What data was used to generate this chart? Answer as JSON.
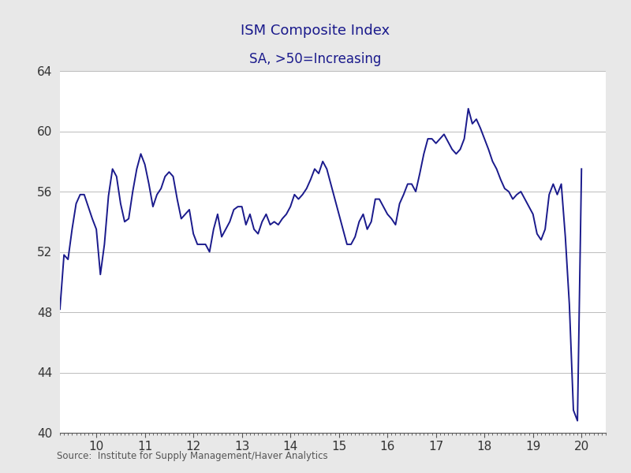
{
  "title": "ISM Composite Index",
  "subtitle": "SA, >50=Increasing",
  "source": "Source:  Institute for Supply Management/Haver Analytics",
  "title_color": "#1A1A8C",
  "subtitle_color": "#1A1A8C",
  "line_color": "#1A1A8C",
  "background_color": "#E8E8E8",
  "plot_bg_color": "#FFFFFF",
  "grid_color": "#BBBBBB",
  "ylim": [
    40,
    64
  ],
  "yticks": [
    40,
    44,
    48,
    52,
    56,
    60,
    64
  ],
  "xlim_start": 2009.25,
  "xlim_end": 2020.5,
  "xtick_labels": [
    "10",
    "11",
    "12",
    "13",
    "14",
    "15",
    "16",
    "17",
    "18",
    "19",
    "20"
  ],
  "xtick_positions": [
    2010,
    2011,
    2012,
    2013,
    2014,
    2015,
    2016,
    2017,
    2018,
    2019,
    2020
  ],
  "values": [
    48.2,
    51.8,
    51.5,
    53.5,
    55.2,
    55.8,
    55.8,
    55.0,
    54.2,
    53.5,
    50.5,
    52.5,
    55.7,
    57.5,
    57.0,
    55.2,
    54.0,
    54.2,
    56.0,
    57.5,
    58.5,
    57.8,
    56.5,
    55.0,
    55.8,
    56.2,
    57.0,
    57.3,
    57.0,
    55.5,
    54.2,
    54.5,
    54.8,
    53.2,
    52.5,
    52.5,
    52.5,
    52.0,
    53.5,
    54.5,
    53.0,
    53.5,
    54.0,
    54.8,
    55.0,
    55.0,
    53.8,
    54.5,
    53.5,
    53.2,
    54.0,
    54.5,
    53.8,
    54.0,
    53.8,
    54.2,
    54.5,
    55.0,
    55.8,
    55.5,
    55.8,
    56.2,
    56.8,
    57.5,
    57.2,
    58.0,
    57.5,
    56.5,
    55.5,
    54.5,
    53.5,
    52.5,
    52.5,
    53.0,
    54.0,
    54.5,
    53.5,
    54.0,
    55.5,
    55.5,
    55.0,
    54.5,
    54.2,
    53.8,
    55.2,
    55.8,
    56.5,
    56.5,
    56.0,
    57.2,
    58.5,
    59.5,
    59.5,
    59.2,
    59.5,
    59.8,
    59.3,
    58.8,
    58.5,
    58.8,
    59.5,
    61.5,
    60.5,
    60.8,
    60.2,
    59.5,
    58.8,
    58.0,
    57.5,
    56.8,
    56.2,
    56.0,
    55.5,
    55.8,
    56.0,
    55.5,
    55.0,
    54.5,
    53.2,
    52.8,
    53.5,
    55.8,
    56.5,
    55.8,
    56.5,
    53.0,
    48.5,
    41.5,
    40.8,
    57.5
  ],
  "line_width": 1.4,
  "title_fontsize": 13,
  "subtitle_fontsize": 12,
  "tick_fontsize": 11,
  "source_fontsize": 8.5
}
